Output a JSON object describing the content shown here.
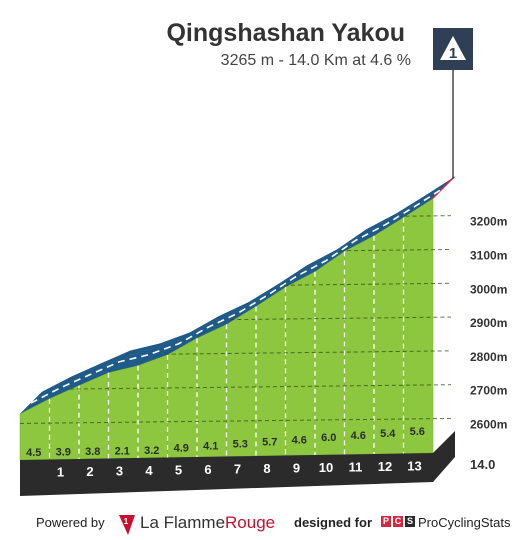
{
  "header": {
    "title": "Qingshashan Yakou",
    "subtitle": "3265 m - 14.0 Km at 4.6 %",
    "category": "1"
  },
  "chart_data": {
    "type": "area",
    "x_unit": "km",
    "km_labels": [
      "1",
      "2",
      "3",
      "4",
      "5",
      "6",
      "7",
      "8",
      "9",
      "10",
      "11",
      "12",
      "13"
    ],
    "km_end": 14.0,
    "gradients": [
      4.5,
      3.9,
      3.8,
      2.1,
      3.2,
      4.9,
      4.1,
      5.3,
      5.7,
      4.6,
      6.0,
      4.6,
      5.4,
      5.6
    ],
    "distance_label": "14.0",
    "y_ticks": [
      2600,
      2700,
      2800,
      2900,
      3000,
      3100,
      3200
    ],
    "y_tick_labels": [
      "2600m",
      "2700m",
      "2800m",
      "2900m",
      "3000m",
      "3100m",
      "3200m"
    ],
    "top_elevation": 3265,
    "colors": {
      "climb": "#8dc63f",
      "road": "#1f5c8a",
      "base": "#2b2b2b",
      "side": "#b5ab9c",
      "summit": "#d7263d"
    }
  },
  "footer": {
    "powered_by": "Powered by",
    "brand_part1": "La Flamme",
    "brand_part2": "Rouge",
    "designed_for": "designed for",
    "pcs_letters": [
      "P",
      "C",
      "S"
    ],
    "pcs_name": "ProCyclingStats"
  }
}
